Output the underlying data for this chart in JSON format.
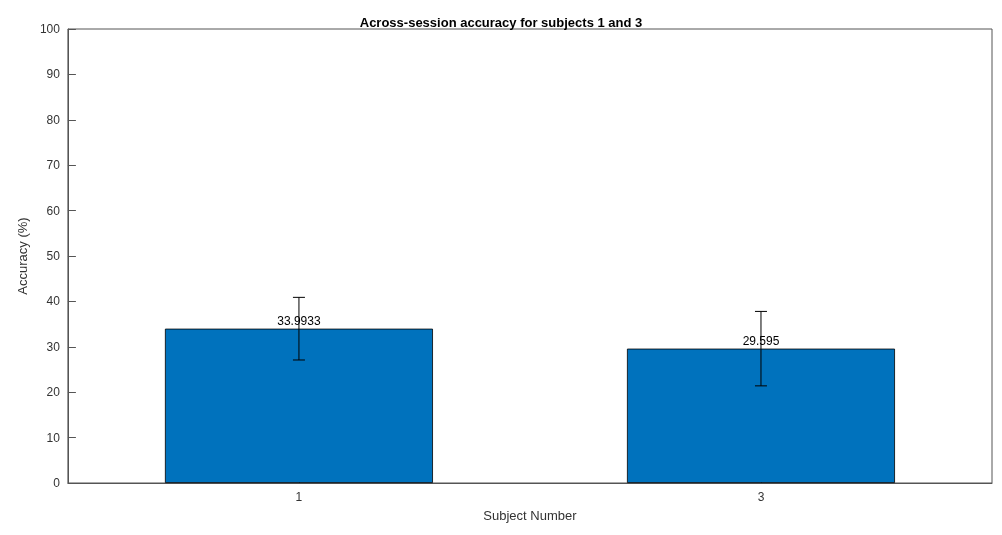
{
  "chart_data": {
    "type": "bar",
    "title": "Across-session accuracy for subjects 1 and 3",
    "xlabel": "Subject Number",
    "ylabel": "Accuracy (%)",
    "categories": [
      "1",
      "3"
    ],
    "values": [
      33.9933,
      29.595
    ],
    "errors": [
      6.9,
      8.2
    ],
    "color": "#0072bd",
    "data_labels": true,
    "ylim": [
      0,
      100
    ],
    "yticks": [
      0,
      10,
      20,
      30,
      40,
      50,
      60,
      70,
      80,
      90,
      100
    ],
    "grid": false
  }
}
